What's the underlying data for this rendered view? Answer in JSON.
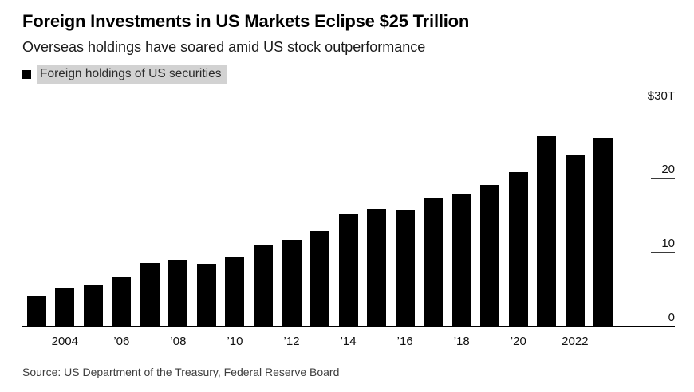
{
  "chart_data": {
    "type": "bar",
    "title": "Foreign Investments in US Markets Eclipse $25 Trillion",
    "subtitle": "Overseas holdings have soared amid US stock outperformance",
    "legend": {
      "label": "Foreign holdings of US securities",
      "position": "top-left",
      "swatch_color": "#000000",
      "highlight_color": "#d2d2d2"
    },
    "xlabel": "",
    "ylabel": "",
    "ylim": [
      0,
      30
    ],
    "bar_color": "#000000",
    "grid": "right-side tick marks only, solid baseline at 0",
    "x": [
      2003,
      2004,
      2005,
      2006,
      2007,
      2008,
      2009,
      2010,
      2011,
      2012,
      2013,
      2014,
      2015,
      2016,
      2017,
      2018,
      2019,
      2020,
      2021,
      2022,
      2023
    ],
    "values": [
      4.1,
      5.2,
      5.6,
      6.6,
      8.6,
      9.0,
      8.5,
      9.3,
      11.0,
      11.7,
      12.9,
      15.2,
      15.9,
      15.8,
      17.3,
      18.0,
      19.2,
      20.9,
      25.8,
      23.3,
      25.5
    ],
    "x_ticks": [
      {
        "year": 2004,
        "label": "2004"
      },
      {
        "year": 2006,
        "label": "’06"
      },
      {
        "year": 2008,
        "label": "’08"
      },
      {
        "year": 2010,
        "label": "’10"
      },
      {
        "year": 2012,
        "label": "’12"
      },
      {
        "year": 2014,
        "label": "’14"
      },
      {
        "year": 2016,
        "label": "’16"
      },
      {
        "year": 2018,
        "label": "’18"
      },
      {
        "year": 2020,
        "label": "’20"
      },
      {
        "year": 2022,
        "label": "2022"
      }
    ],
    "y_ticks": [
      {
        "label": "$30T",
        "value": 30
      },
      {
        "label": "20",
        "value": 20
      },
      {
        "label": "10",
        "value": 10
      },
      {
        "label": "0",
        "value": 0
      }
    ],
    "source": "Source: US Department of the Treasury, Federal Reserve Board"
  }
}
